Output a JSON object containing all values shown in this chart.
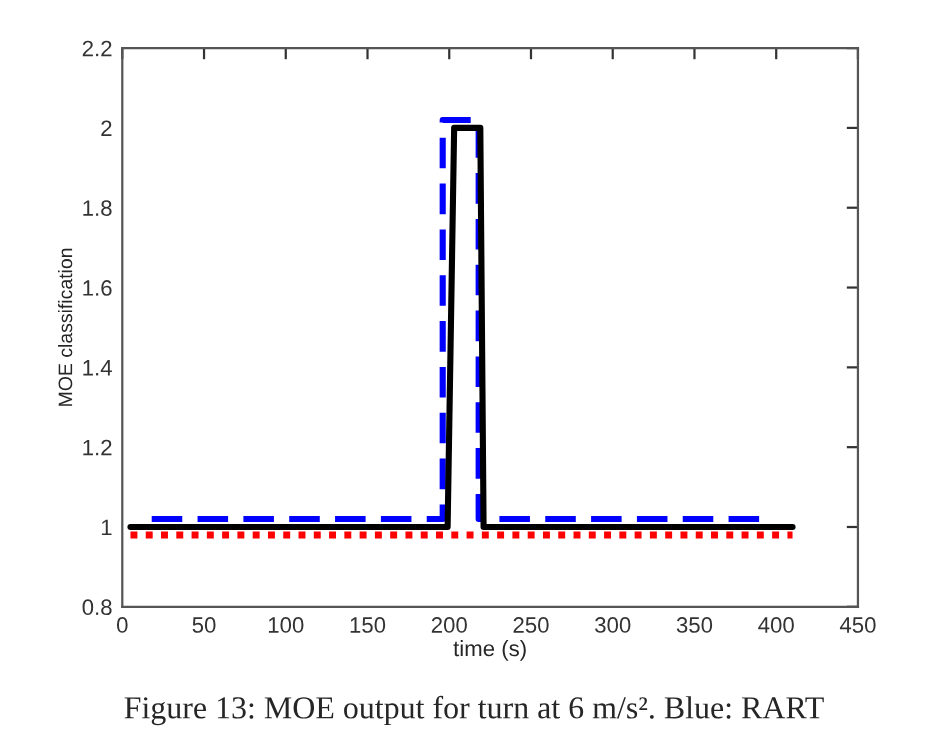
{
  "chart_data": {
    "type": "line",
    "xlabel": "time (s)",
    "ylabel": "MOE classification",
    "series": [
      {
        "color": "#000000",
        "line_style": "solid",
        "x": [
          5,
          199,
          203,
          219,
          221,
          410
        ],
        "values": [
          1,
          1,
          2,
          2,
          1,
          1
        ]
      },
      {
        "color": "#0000ff",
        "line_style": "dashed",
        "x": [
          18,
          196,
          196,
          218,
          218,
          390
        ],
        "values": [
          1.02,
          1.02,
          2.02,
          2.02,
          1.02,
          1.02
        ]
      },
      {
        "color": "#ff0000",
        "line_style": "dotted",
        "x": [
          5,
          410
        ],
        "values": [
          0.98,
          0.98
        ]
      }
    ],
    "xlim": [
      0,
      450
    ],
    "xticks": [
      0,
      50,
      100,
      150,
      200,
      250,
      300,
      350,
      400,
      450
    ],
    "ylim": [
      0.8,
      2.2
    ],
    "yticks": [
      0.8,
      1,
      1.2,
      1.4,
      1.6,
      1.8,
      2,
      2.2
    ],
    "grid": false,
    "legend": false,
    "marker": "none",
    "annotations": [
      "Figure 13: MOE output for turn at 6 m/s². Blue: RART"
    ]
  }
}
